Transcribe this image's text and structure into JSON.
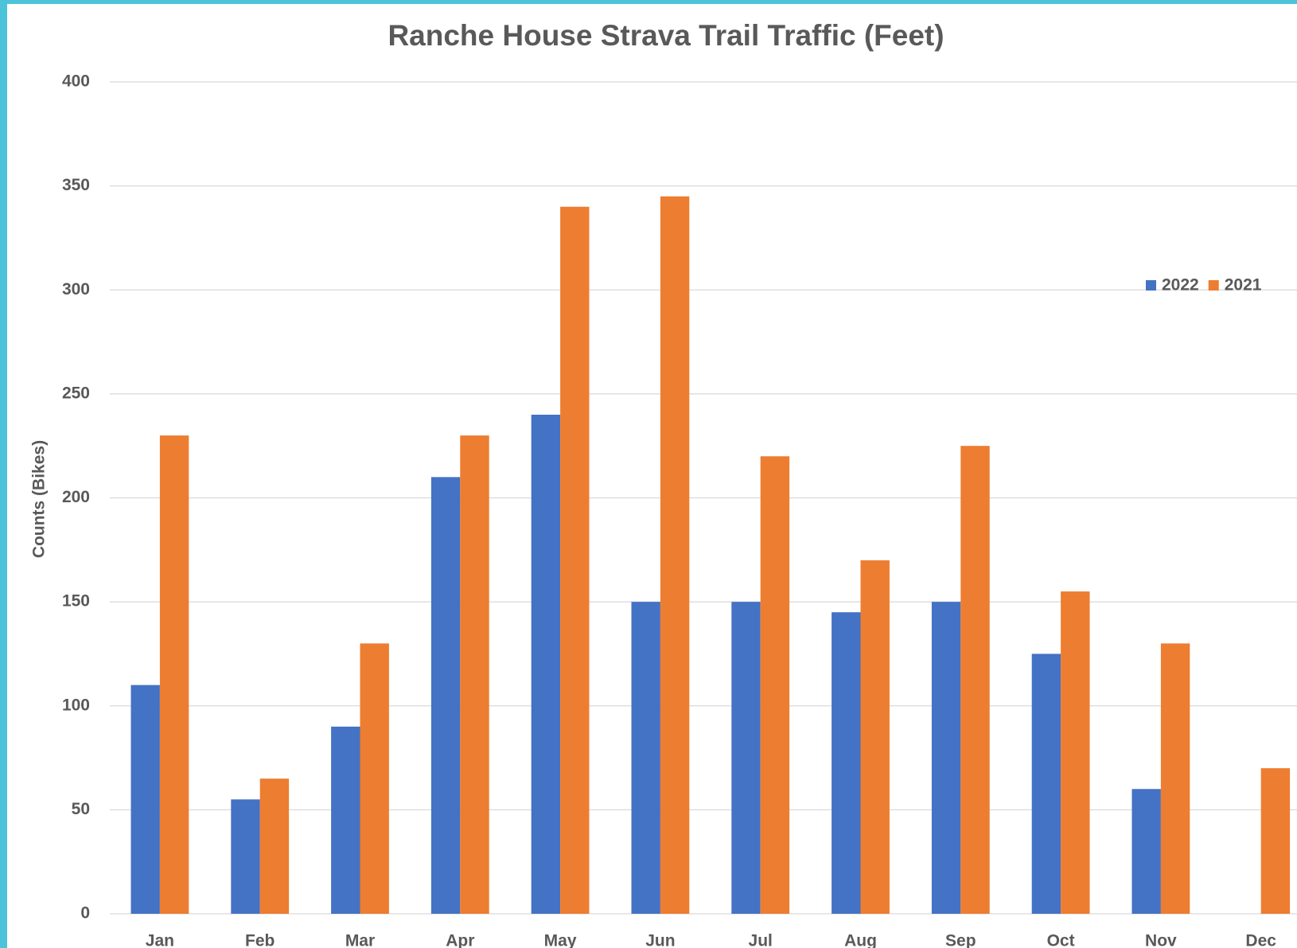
{
  "chart_data": {
    "type": "bar",
    "title": "Ranche House Strava Trail Traffic (Feet)",
    "y_label": "Counts (Bikes)",
    "categories": [
      "Jan",
      "Feb",
      "Mar",
      "Apr",
      "May",
      "Jun",
      "Jul",
      "Aug",
      "Sep",
      "Oct",
      "Nov",
      "Dec"
    ],
    "series": [
      {
        "name": "2022",
        "color": "#4472c4",
        "values": [
          110,
          55,
          90,
          210,
          240,
          150,
          150,
          145,
          150,
          125,
          60,
          null
        ]
      },
      {
        "name": "2021",
        "color": "#ed7d31",
        "values": [
          230,
          65,
          130,
          230,
          340,
          345,
          220,
          170,
          225,
          155,
          130,
          70
        ]
      }
    ],
    "ylim": [
      0,
      400
    ],
    "yticks": [
      0,
      50,
      100,
      150,
      200,
      250,
      300,
      350,
      400
    ],
    "grid": true,
    "legend": "top-right"
  }
}
